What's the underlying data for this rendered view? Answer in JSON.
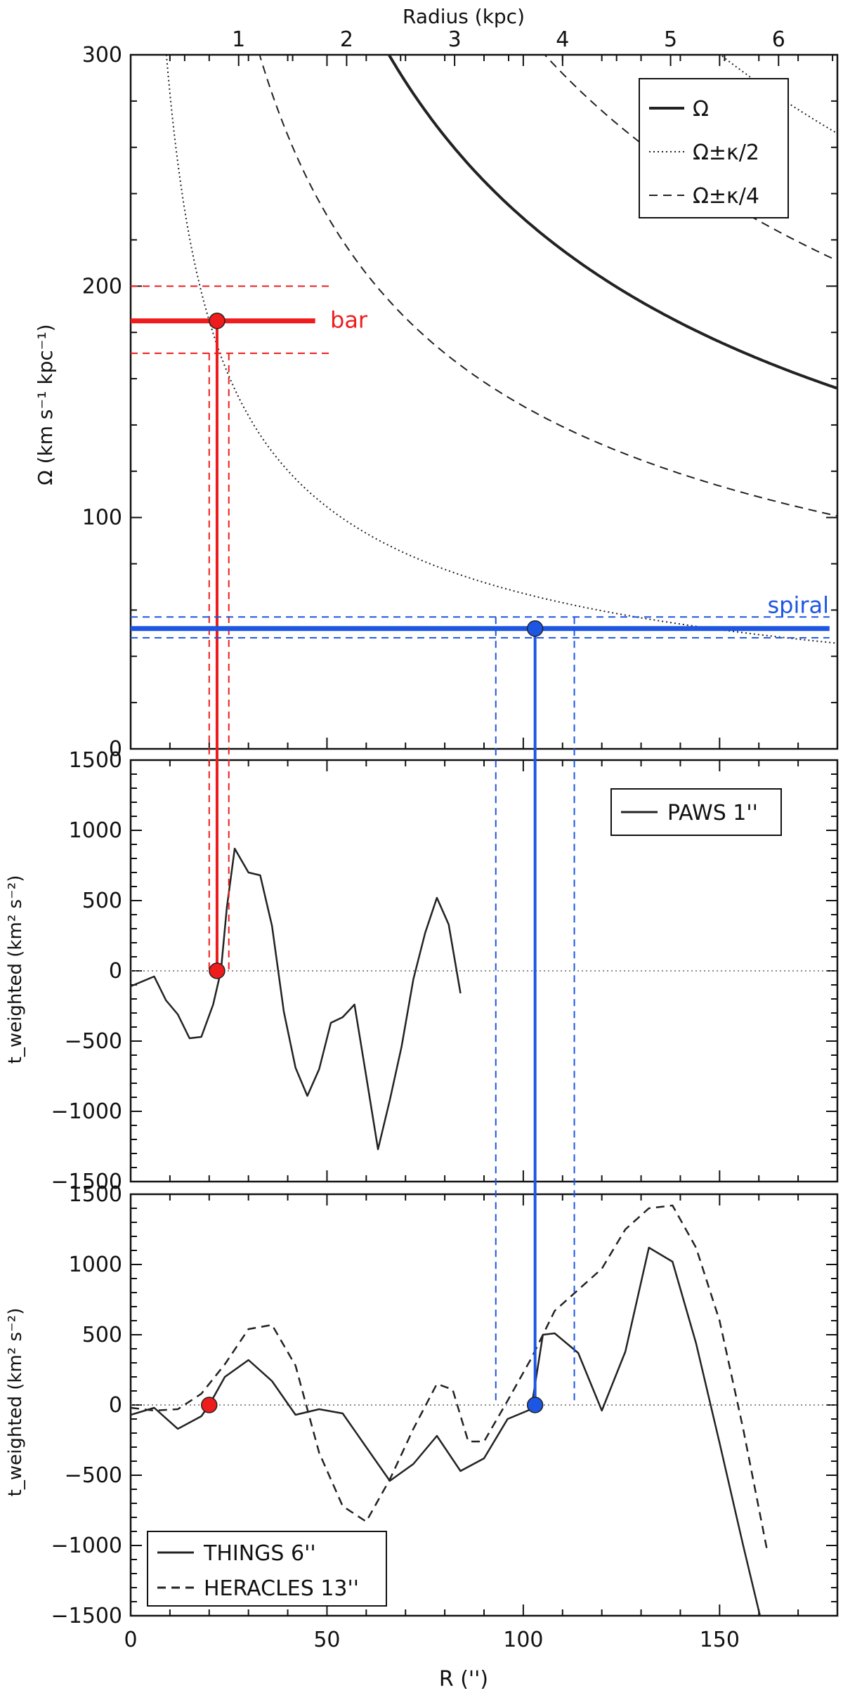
{
  "colors": {
    "bar": "#ee1c1c",
    "spiral": "#1d56e2",
    "curve": "#222222",
    "axis": "#111111"
  },
  "chart_data": [
    {
      "type": "line",
      "panel": "top",
      "title": "",
      "xlabel_top": "Radius (kpc)",
      "ylabel": "Ω (km s⁻¹ kpc⁻¹)",
      "xlim": [
        0,
        180
      ],
      "ylim": [
        0,
        300
      ],
      "yticks": [
        0,
        100,
        200,
        300
      ],
      "kpc_per_arcsec": 0.03636,
      "top_ticks": [
        1,
        2,
        3,
        4,
        5,
        6
      ],
      "omega_curve": {
        "a": 3920,
        "b": -0.6
      },
      "series": [
        {
          "name": "Ω",
          "style": "solid",
          "mult": 1
        },
        {
          "name": "Ω±κ/2",
          "style": "dotted",
          "mult": [
            1.707,
            0.293
          ]
        },
        {
          "name": "Ω±κ/4",
          "style": "dashed",
          "mult": [
            1.354,
            0.646
          ]
        }
      ],
      "legend": [
        "Ω",
        "Ω±κ/2",
        "Ω±κ/4"
      ],
      "legend_position": "top-right",
      "bar": {
        "label": "bar",
        "omega": 185,
        "omega_range": [
          171,
          200
        ],
        "radius": 22,
        "radius_range": [
          20,
          25
        ],
        "line_extent": [
          0,
          47
        ]
      },
      "spiral": {
        "label": "spiral",
        "omega": 52,
        "omega_range": [
          48,
          57
        ],
        "radius": 103,
        "radius_range": [
          93,
          113
        ],
        "line_extent": [
          0,
          178
        ]
      }
    },
    {
      "type": "line",
      "panel": "middle",
      "ylabel": "t_weighted (km² s⁻²)",
      "xlim": [
        0,
        180
      ],
      "ylim": [
        -1500,
        1500
      ],
      "yticks": [
        -1500,
        -1000,
        -500,
        0,
        500,
        1000,
        1500
      ],
      "legend": [
        "PAWS 1''"
      ],
      "legend_position": "top-right",
      "series": [
        {
          "name": "PAWS 1''",
          "style": "solid",
          "x": [
            0,
            6,
            9,
            12,
            15,
            18,
            21,
            23,
            24.5,
            26.5,
            30,
            33,
            36,
            39,
            42,
            45,
            48,
            51,
            54,
            57,
            60,
            63,
            66,
            69,
            72,
            75,
            78,
            81,
            84
          ],
          "y": [
            -110,
            -40,
            -210,
            -310,
            -480,
            -470,
            -240,
            0,
            450,
            870,
            700,
            680,
            320,
            -290,
            -690,
            -890,
            -700,
            -370,
            -330,
            -240,
            -750,
            -1270,
            -920,
            -540,
            -60,
            270,
            520,
            330,
            -160
          ]
        }
      ]
    },
    {
      "type": "line",
      "panel": "bottom",
      "xlabel": "R ('')",
      "ylabel": "t_weighted (km² s⁻²)",
      "xlim": [
        0,
        180
      ],
      "ylim": [
        -1500,
        1500
      ],
      "xticks": [
        0,
        50,
        100,
        150
      ],
      "yticks": [
        -1500,
        -1000,
        -500,
        0,
        500,
        1000,
        1500
      ],
      "legend": [
        "THINGS 6''",
        "HERACLES 13''"
      ],
      "legend_position": "bottom-left",
      "series": [
        {
          "name": "THINGS 6''",
          "style": "solid",
          "x": [
            0,
            6,
            12,
            18,
            20,
            24,
            30,
            36,
            42,
            48,
            54,
            60,
            66,
            72,
            78,
            84,
            90,
            96,
            102,
            105,
            108,
            114,
            120,
            126,
            132,
            138,
            144,
            150,
            156,
            162
          ],
          "y": [
            -70,
            -20,
            -170,
            -80,
            0,
            200,
            320,
            170,
            -70,
            -30,
            -60,
            -300,
            -540,
            -420,
            -220,
            -470,
            -380,
            -100,
            -30,
            500,
            510,
            370,
            -40,
            380,
            1120,
            1020,
            440,
            -270,
            -1000,
            -1700
          ]
        },
        {
          "name": "HERACLES 13''",
          "style": "dashed",
          "x": [
            0,
            6,
            12,
            18,
            24,
            30,
            36,
            42,
            48,
            54,
            60,
            66,
            72,
            78,
            82,
            86,
            90,
            96,
            102,
            108,
            114,
            120,
            126,
            132,
            138,
            144,
            150,
            156,
            162
          ],
          "y": [
            -20,
            -40,
            -30,
            80,
            290,
            540,
            570,
            280,
            -340,
            -720,
            -830,
            -530,
            -170,
            150,
            110,
            -260,
            -260,
            30,
            330,
            670,
            820,
            970,
            1250,
            1400,
            1420,
            1120,
            600,
            -170,
            -1020
          ]
        }
      ]
    }
  ]
}
